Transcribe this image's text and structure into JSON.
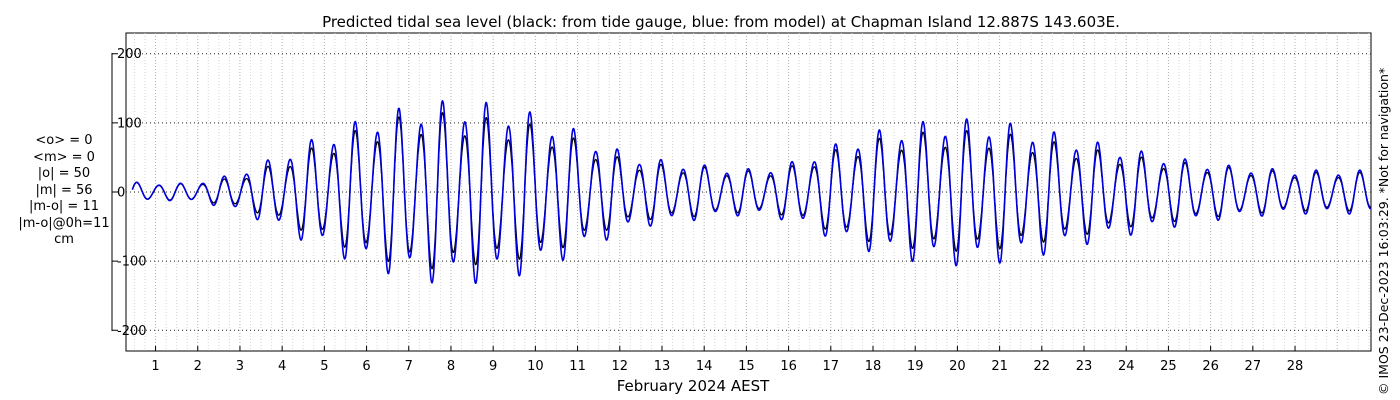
{
  "chart_data": {
    "type": "line",
    "title": "Predicted tidal sea level (black: from tide gauge, blue: from model) at Chapman Island 12.887S 143.603E.",
    "xlabel": "February 2024 AEST",
    "ylabel": "",
    "units": "cm",
    "xlim": [
      0.3,
      29.8
    ],
    "ylim": [
      -230,
      230
    ],
    "yticks": [
      -200,
      -100,
      0,
      100,
      200
    ],
    "xticks": [
      1,
      2,
      3,
      4,
      5,
      6,
      7,
      8,
      9,
      10,
      11,
      12,
      13,
      14,
      15,
      16,
      17,
      18,
      19,
      20,
      21,
      22,
      23,
      24,
      25,
      26,
      27,
      28
    ],
    "grid": true,
    "series": [
      {
        "name": "black: from tide gauge",
        "color": "#000000",
        "x": [
          0.5,
          1.0,
          1.5,
          2.0,
          2.5,
          3.0,
          3.5,
          4.0,
          4.5,
          5.0,
          5.5,
          6.0,
          6.5,
          7.0,
          7.5,
          8.0,
          8.5,
          9.0,
          9.5,
          10.0,
          10.5,
          11.0,
          11.5,
          12.0,
          12.5,
          13.0,
          13.5,
          14.0,
          14.5,
          15.0,
          15.5,
          16.0,
          16.5,
          17.0,
          17.5,
          18.0,
          18.5,
          19.0,
          19.5,
          20.0,
          20.5,
          21.0,
          21.5,
          22.0,
          22.5,
          23.0,
          23.5,
          24.0,
          24.5,
          25.0,
          25.5,
          26.0,
          26.5,
          27.0,
          27.5,
          28.0,
          28.5,
          29.0,
          29.5
        ],
        "amplitude": [
          15,
          14,
          12,
          15,
          18,
          25,
          35,
          48,
          62,
          75,
          88,
          100,
          110,
          118,
          122,
          120,
          116,
          112,
          108,
          102,
          92,
          80,
          66,
          52,
          45,
          42,
          40,
          38,
          34,
          32,
          33,
          38,
          50,
          62,
          72,
          80,
          86,
          90,
          93,
          94,
          93,
          90,
          86,
          80,
          74,
          68,
          62,
          56,
          52,
          48,
          44,
          40,
          37,
          34,
          32,
          30,
          30,
          30,
          30
        ]
      },
      {
        "name": "blue: from model",
        "color": "#0000dd",
        "x": [
          0.5,
          1.0,
          1.5,
          2.0,
          2.5,
          3.0,
          3.5,
          4.0,
          4.5,
          5.0,
          5.5,
          6.0,
          6.5,
          7.0,
          7.5,
          8.0,
          8.5,
          9.0,
          9.5,
          10.0,
          10.5,
          11.0,
          11.5,
          12.0,
          12.5,
          13.0,
          13.5,
          14.0,
          14.5,
          15.0,
          15.5,
          16.0,
          16.5,
          17.0,
          17.5,
          18.0,
          18.5,
          19.0,
          19.5,
          20.0,
          20.5,
          21.0,
          21.5,
          22.0,
          22.5,
          23.0,
          23.5,
          24.0,
          24.5,
          25.0,
          25.5,
          26.0,
          26.5,
          27.0,
          27.5,
          28.0,
          28.5,
          29.0,
          29.5
        ],
        "amplitude": [
          15,
          14,
          13,
          16,
          22,
          32,
          45,
          60,
          76,
          90,
          104,
          116,
          126,
          134,
          140,
          143,
          142,
          138,
          132,
          122,
          110,
          96,
          80,
          65,
          55,
          50,
          46,
          42,
          38,
          36,
          38,
          45,
          58,
          72,
          84,
          94,
          102,
          108,
          112,
          114,
          113,
          110,
          104,
          98,
          90,
          82,
          75,
          68,
          62,
          56,
          50,
          45,
          41,
          38,
          36,
          34,
          34,
          34,
          34
        ]
      }
    ],
    "stats": {
      "unit_label": "cm",
      "lines": [
        "<o> = 0",
        "<m> = 0",
        "|o| = 50",
        "|m| = 56",
        "|m-o| = 11",
        "|m-o|@0h=11",
        "cm"
      ]
    }
  },
  "credit": "© IMOS 23-Dec-2023 16:03:29. *Not for navigation*"
}
